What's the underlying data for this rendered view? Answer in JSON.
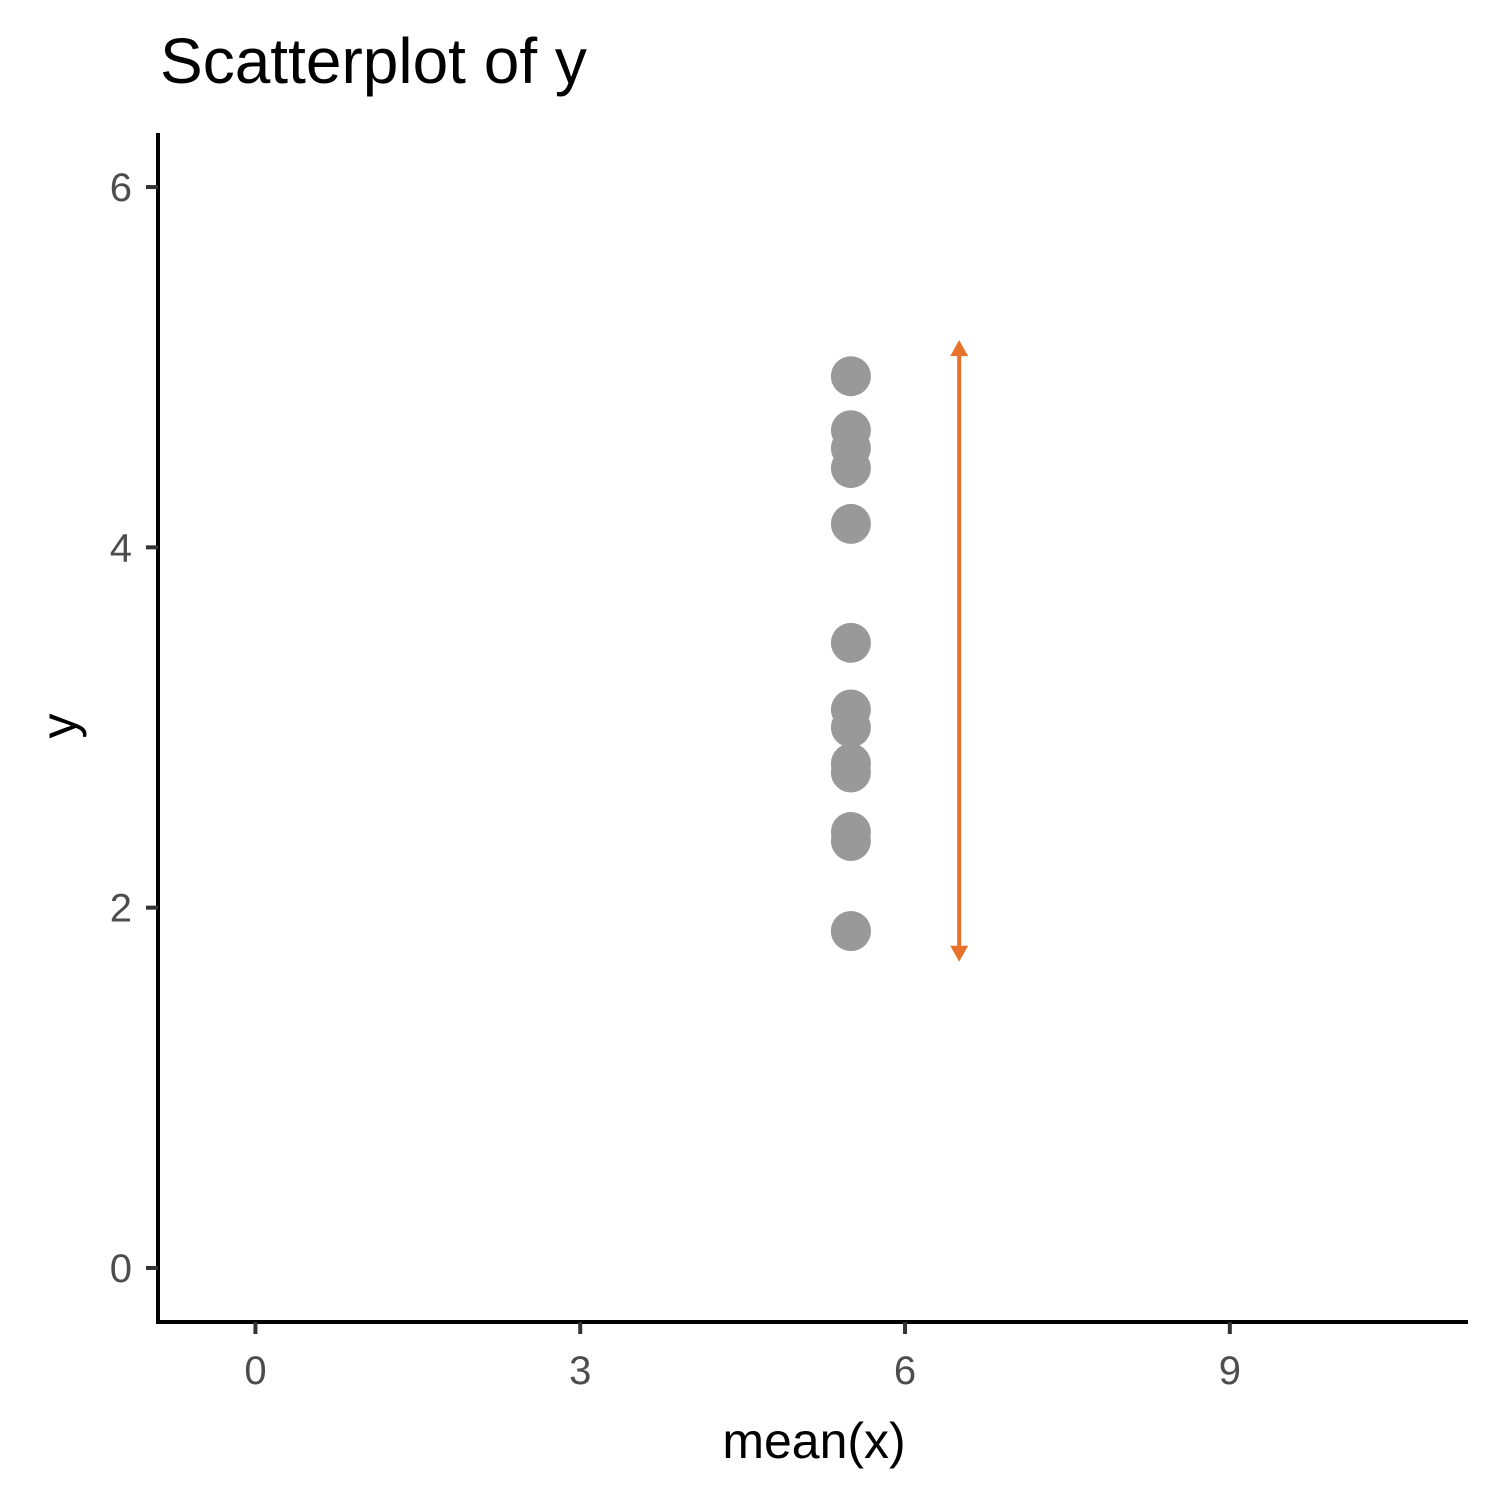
{
  "chart_data": {
    "type": "scatter",
    "title": "Scatterplot of y",
    "xlabel": "mean(x)",
    "ylabel": "y",
    "xlim": [
      -0.9,
      11.2
    ],
    "ylim": [
      -0.3,
      6.3
    ],
    "x_ticks": [
      0,
      3,
      6,
      9
    ],
    "y_ticks": [
      0,
      2,
      4,
      6
    ],
    "grid": false,
    "series": [
      {
        "x": [
          5.5,
          5.5,
          5.5,
          5.5,
          5.5,
          5.5,
          5.5,
          5.5,
          5.5,
          5.5,
          5.5,
          5.5,
          5.5,
          5.5
        ],
        "y": [
          4.95,
          4.65,
          4.55,
          4.44,
          4.13,
          3.47,
          3.1,
          3.0,
          2.8,
          2.75,
          2.42,
          2.37,
          1.87,
          1.87
        ],
        "color": "#999999"
      }
    ],
    "range_arrow": {
      "x": 6.5,
      "y_from": 1.7,
      "y_to": 5.15,
      "color": "#E8722C"
    }
  }
}
